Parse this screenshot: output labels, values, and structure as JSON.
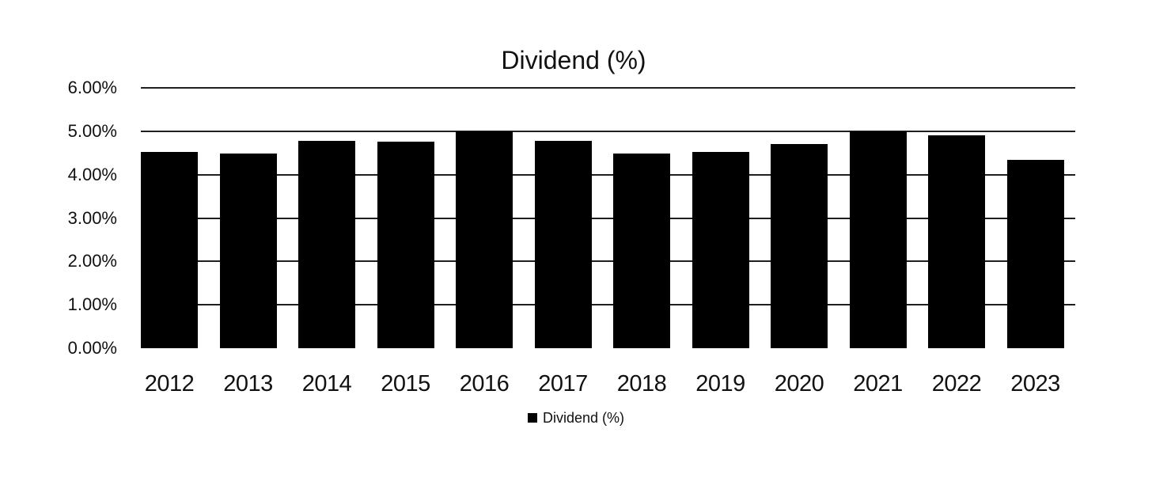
{
  "chart_data": {
    "type": "bar",
    "title": "Dividend (%)",
    "categories": [
      "2012",
      "2013",
      "2014",
      "2015",
      "2016",
      "2017",
      "2018",
      "2019",
      "2020",
      "2021",
      "2022",
      "2023"
    ],
    "series": [
      {
        "name": "Dividend (%)",
        "color": "#000000",
        "values": [
          4.53,
          4.49,
          4.78,
          4.76,
          5.0,
          4.77,
          4.48,
          4.52,
          4.71,
          5.0,
          4.9,
          4.34
        ]
      }
    ],
    "xlabel": "",
    "ylabel": "",
    "ylim": [
      0,
      6
    ],
    "ytick_step": 1,
    "ytick_labels": [
      "0.00%",
      "1.00%",
      "2.00%",
      "3.00%",
      "4.00%",
      "5.00%",
      "6.00%"
    ],
    "grid": true,
    "grid_behind_bars": true,
    "legend": {
      "position": "bottom",
      "entries": [
        "Dividend (%)"
      ]
    }
  },
  "colors": {
    "bar": "#000000",
    "gridline": "#1f1f1f",
    "text": "#111111",
    "background": "#ffffff"
  }
}
